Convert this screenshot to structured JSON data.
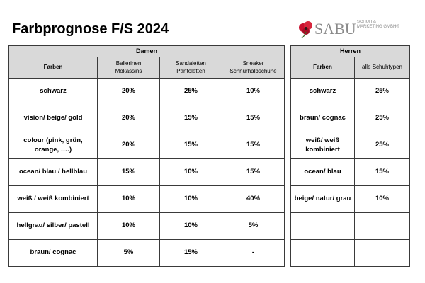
{
  "header": {
    "title": "Farbprognose F/S 2024",
    "logo": {
      "name": "SABU",
      "tagline": "SCHUH & MARKETING GMBH®"
    }
  },
  "tables": [
    {
      "group": "Damen",
      "columns": [
        "Farben",
        "Ballerinen\nMokassins",
        "Sandaletten\nPantoletten",
        "Sneaker\nSchnürhalbschuhe"
      ],
      "rows": [
        [
          "schwarz",
          "20%",
          "25%",
          "10%"
        ],
        [
          "vision/ beige/ gold",
          "20%",
          "15%",
          "15%"
        ],
        [
          "colour (pink, grün, orange, ….)",
          "20%",
          "15%",
          "15%"
        ],
        [
          "ocean/ blau / hellblau",
          "15%",
          "10%",
          "15%"
        ],
        [
          "weiß / weiß kombiniert",
          "10%",
          "10%",
          "40%"
        ],
        [
          "hellgrau/ silber/ pastell",
          "10%",
          "10%",
          "5%"
        ],
        [
          "braun/ cognac",
          "5%",
          "15%",
          "-"
        ]
      ]
    },
    {
      "group": "Herren",
      "columns": [
        "Farben",
        "alle Schuhtypen"
      ],
      "rows": [
        [
          "schwarz",
          "25%"
        ],
        [
          "braun/ cognac",
          "25%"
        ],
        [
          "weiß/ weiß kombiniert",
          "25%"
        ],
        [
          "ocean/ blau",
          "15%"
        ],
        [
          "beige/ natur/ grau",
          "10%"
        ]
      ]
    }
  ]
}
